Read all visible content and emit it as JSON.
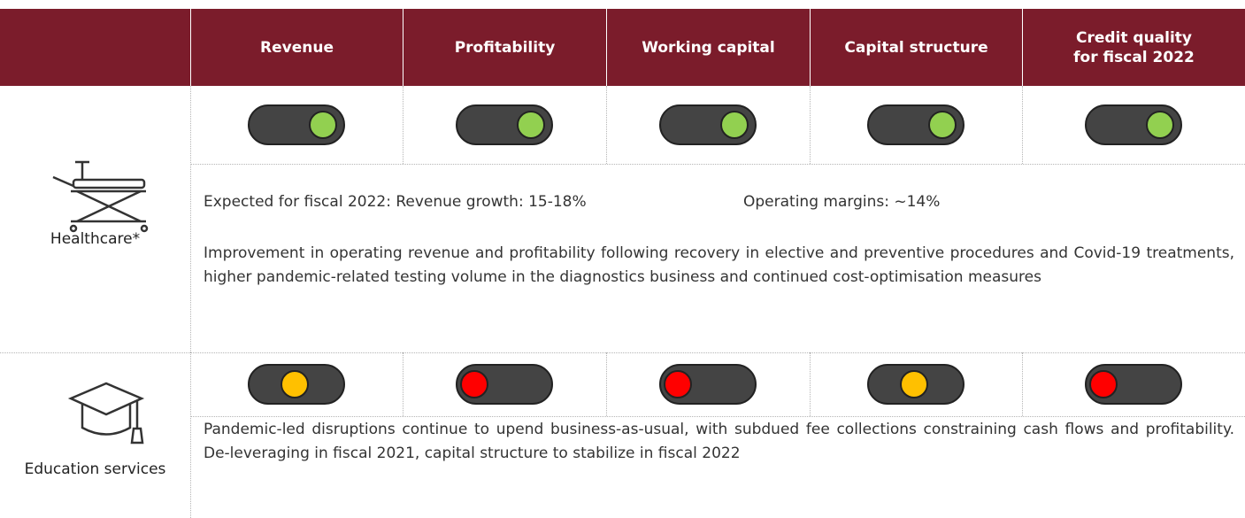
{
  "header": {
    "columns": [
      "Revenue",
      "Profitability",
      "Working capital",
      "Capital structure",
      "Credit quality for fiscal 2022"
    ]
  },
  "rows": [
    {
      "label": "Healthcare*",
      "indicators": [
        {
          "color": "#92d050",
          "knob": "right"
        },
        {
          "color": "#92d050",
          "knob": "right"
        },
        {
          "color": "#92d050",
          "knob": "right"
        },
        {
          "color": "#92d050",
          "knob": "right"
        },
        {
          "color": "#92d050",
          "knob": "right"
        }
      ],
      "expected": [
        "Expected for fiscal 2022: Revenue growth: 15-18%",
        "Operating margins: ~14%"
      ],
      "text": "Improvement in operating revenue and profitability following recovery in elective and preventive procedures and Covid-19 treatments, higher pandemic-related testing volume in the diagnostics business and continued cost-optimisation measures"
    },
    {
      "label": "Education services",
      "indicators": [
        {
          "color": "#ffc000",
          "knob": "middle"
        },
        {
          "color": "#ff0000",
          "knob": "left"
        },
        {
          "color": "#ff0000",
          "knob": "left"
        },
        {
          "color": "#ffc000",
          "knob": "middle"
        },
        {
          "color": "#ff0000",
          "knob": "left"
        }
      ],
      "text": "Pandemic-led disruptions continue to upend business-as-usual, with subdued fee collections constraining cash flows and profitability. De-leveraging in fiscal 2021, capital structure to stabilize in fiscal 2022"
    }
  ]
}
